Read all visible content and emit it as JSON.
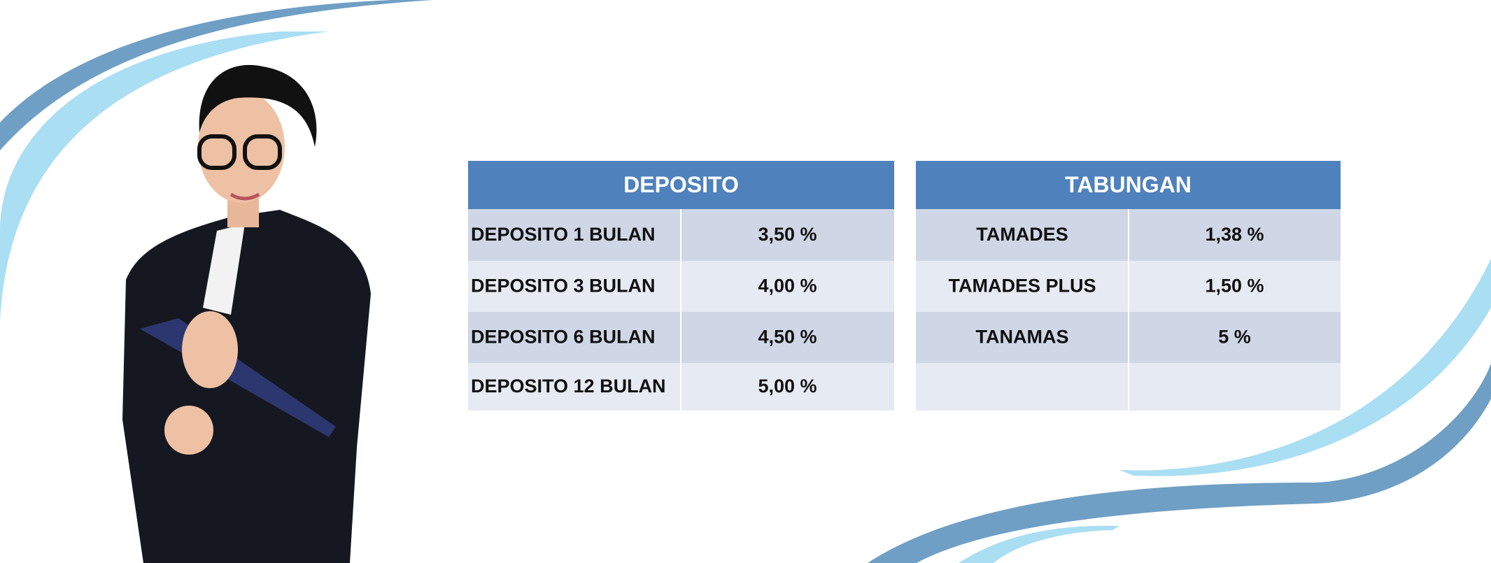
{
  "tables": [
    {
      "title": "DEPOSITO",
      "rows": [
        [
          "DEPOSITO 1 BULAN",
          "3,50 %"
        ],
        [
          "DEPOSITO 3 BULAN",
          "4,00 %"
        ],
        [
          "DEPOSITO 6 BULAN",
          "4,50 %"
        ],
        [
          "DEPOSITO 12 BULAN",
          "5,00 %"
        ]
      ]
    },
    {
      "title": "TABUNGAN",
      "rows": [
        [
          "TAMADES",
          "1,38 %"
        ],
        [
          "TAMADES PLUS",
          "1,50 %"
        ],
        [
          "TANAMAS",
          "5 %"
        ]
      ]
    }
  ]
}
